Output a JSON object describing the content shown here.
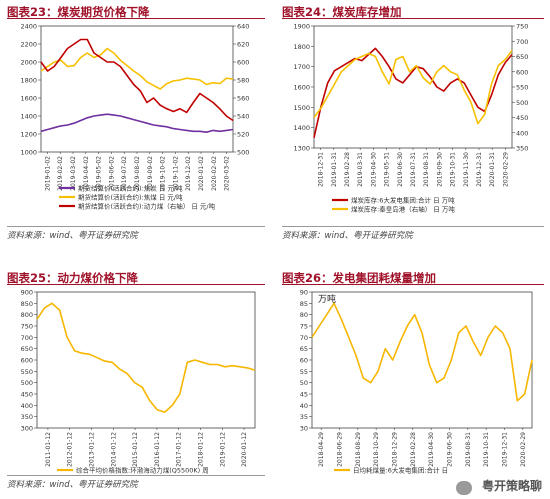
{
  "source_text": "资料来源：wind、粤开证券研究院",
  "watermark": "粤开策略聊",
  "colors": {
    "purple": "#7030a0",
    "yellow": "#f7c000",
    "red": "#c00000",
    "gold": "#f7b600",
    "title": "#a0122a"
  },
  "chart_data": [
    {
      "type": "line",
      "title": "图表23：煤炭期货价格下降",
      "y_left_ticks": [
        "2400",
        "2200",
        "2000",
        "1800",
        "1600",
        "1400",
        "1200",
        "1000"
      ],
      "ylim_left": [
        1000,
        2400
      ],
      "y_right_ticks": [
        "640",
        "620",
        "600",
        "580",
        "560",
        "540",
        "520",
        "500"
      ],
      "ylim_right": [
        500,
        640
      ],
      "x_ticks": [
        "2019-01-02",
        "2019-02-02",
        "2019-03-02",
        "2019-04-02",
        "2019-05-02",
        "2019-06-02",
        "2019-07-02",
        "2019-08-02",
        "2019-09-02",
        "2019-10-02",
        "2019-11-02",
        "2019-12-02",
        "2020-01-02",
        "2020-02-02",
        "2020-03-02"
      ],
      "series": [
        {
          "name": "期货结算价(活跃合约):焦炭 日 元/吨",
          "axis": "left",
          "color": "#7030a0",
          "values": [
            1230,
            1250,
            1270,
            1290,
            1300,
            1320,
            1350,
            1380,
            1400,
            1410,
            1420,
            1410,
            1400,
            1380,
            1360,
            1340,
            1320,
            1300,
            1290,
            1280,
            1260,
            1250,
            1240,
            1230,
            1230,
            1220,
            1240,
            1230,
            1240,
            1250
          ]
        },
        {
          "name": "期货结算价(活跃合约):焦煤 日 元/吨",
          "axis": "left",
          "color": "#f7c000",
          "values": [
            1900,
            1950,
            2000,
            2020,
            1950,
            1960,
            2050,
            2100,
            2050,
            2080,
            2150,
            2100,
            2020,
            1960,
            1900,
            1850,
            1780,
            1740,
            1700,
            1760,
            1790,
            1800,
            1820,
            1810,
            1800,
            1750,
            1770,
            1760,
            1820,
            1810
          ]
        },
        {
          "name": "期货结算价(活跃合约):动力煤（右轴） 日 元/吨",
          "axis": "right",
          "color": "#c00000",
          "values": [
            600,
            590,
            595,
            605,
            615,
            620,
            625,
            625,
            610,
            605,
            600,
            600,
            595,
            585,
            575,
            568,
            555,
            560,
            552,
            548,
            545,
            548,
            544,
            555,
            565,
            560,
            555,
            548,
            540,
            535
          ]
        }
      ]
    },
    {
      "type": "line",
      "title": "图表24：煤炭库存增加",
      "y_left_ticks": [
        "1900",
        "1800",
        "1700",
        "1600",
        "1500",
        "1400",
        "1300"
      ],
      "ylim_left": [
        1300,
        1900
      ],
      "y_right_ticks": [
        "750",
        "700",
        "650",
        "600",
        "550",
        "500",
        "450",
        "400",
        "350"
      ],
      "ylim_right": [
        350,
        750
      ],
      "x_ticks": [
        "2018-12-31",
        "2019-01-31",
        "2019-02-28",
        "2019-03-31",
        "2019-04-30",
        "2019-05-31",
        "2019-06-30",
        "2019-07-31",
        "2019-08-31",
        "2019-09-30",
        "2019-10-31",
        "2019-11-30",
        "2019-12-31",
        "2020-01-31",
        "2020-02-29"
      ],
      "series": [
        {
          "name": "煤炭库存:6大发电集团:合计 日 万吨",
          "axis": "left",
          "color": "#c00000",
          "values": [
            1350,
            1500,
            1620,
            1680,
            1700,
            1720,
            1740,
            1730,
            1760,
            1790,
            1750,
            1700,
            1640,
            1620,
            1660,
            1700,
            1690,
            1650,
            1600,
            1580,
            1620,
            1640,
            1620,
            1560,
            1500,
            1480,
            1560,
            1660,
            1720,
            1760
          ]
        },
        {
          "name": "煤炭库存:秦皇岛港（右轴） 日 万吨",
          "axis": "right",
          "color": "#f7c000",
          "values": [
            450,
            480,
            520,
            560,
            600,
            620,
            640,
            650,
            660,
            650,
            600,
            560,
            640,
            650,
            600,
            620,
            580,
            560,
            600,
            620,
            600,
            590,
            540,
            500,
            430,
            460,
            560,
            620,
            640,
            670
          ]
        }
      ]
    },
    {
      "type": "line",
      "title": "图表25：动力煤价格下降",
      "y_ticks": [
        "900",
        "850",
        "800",
        "750",
        "700",
        "650",
        "600",
        "550",
        "500",
        "450",
        "400",
        "350",
        "300"
      ],
      "ylim": [
        300,
        900
      ],
      "x_ticks": [
        "2011-01-12",
        "2012-01-12",
        "2013-01-12",
        "2014-01-12",
        "2015-01-12",
        "2016-01-12",
        "2017-01-12",
        "2018-01-12",
        "2019-01-12",
        "2020-01-12"
      ],
      "series": [
        {
          "name": "综合平均价格指数:环渤海动力煤(Q5500K) 周",
          "color": "#f7b600",
          "values": [
            780,
            830,
            850,
            820,
            700,
            640,
            630,
            625,
            610,
            595,
            590,
            560,
            540,
            500,
            480,
            420,
            380,
            370,
            400,
            450,
            590,
            600,
            590,
            580,
            580,
            570,
            575,
            570,
            565,
            555
          ]
        }
      ]
    },
    {
      "type": "line",
      "title": "图表26：发电集团耗煤量增加",
      "unit_label": "万吨",
      "y_ticks": [
        "90",
        "85",
        "80",
        "75",
        "70",
        "65",
        "60",
        "55",
        "50",
        "45",
        "40",
        "35",
        "30"
      ],
      "ylim": [
        30,
        90
      ],
      "x_ticks": [
        "2018-04-29",
        "2018-06-29",
        "2018-08-29",
        "2018-10-29",
        "2018-12-29",
        "2019-02-28",
        "2019-04-30",
        "2019-06-30",
        "2019-08-31",
        "2019-10-31",
        "2019-12-31",
        "2020-02-29"
      ],
      "series": [
        {
          "name": "日均耗煤量:6大发电集团:合计 日",
          "color": "#f7b600",
          "values": [
            70,
            75,
            80,
            85,
            78,
            70,
            62,
            52,
            50,
            55,
            65,
            60,
            68,
            75,
            80,
            72,
            58,
            50,
            52,
            60,
            72,
            75,
            68,
            62,
            70,
            75,
            72,
            65,
            42,
            45,
            60
          ]
        }
      ]
    }
  ]
}
